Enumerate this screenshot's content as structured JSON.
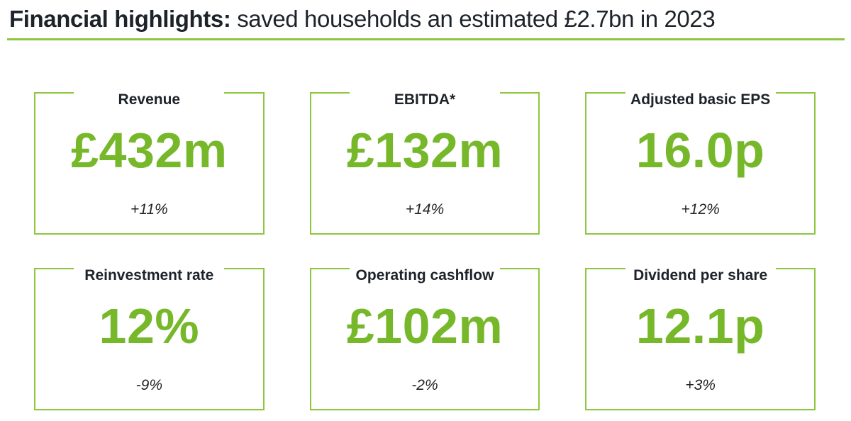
{
  "header": {
    "title_bold": "Financial highlights:",
    "title_rest": " saved households an estimated £2.7bn in 2023"
  },
  "colors": {
    "accent_green": "#76b82a",
    "border_green": "#8dc63f",
    "rule_green": "#8dc63f",
    "text_dark": "#1d232a"
  },
  "cards": [
    {
      "label": "Revenue",
      "value": "£432m",
      "change": "+11%"
    },
    {
      "label": "EBITDA*",
      "value": "£132m",
      "change": "+14%"
    },
    {
      "label": "Adjusted basic EPS",
      "value": "16.0p",
      "change": "+12%"
    },
    {
      "label": "Reinvestment rate",
      "value": "12%",
      "change": "-9%"
    },
    {
      "label": "Operating cashflow",
      "value": "£102m",
      "change": "-2%"
    },
    {
      "label": "Dividend per share",
      "value": "12.1p",
      "change": "+3%"
    }
  ]
}
